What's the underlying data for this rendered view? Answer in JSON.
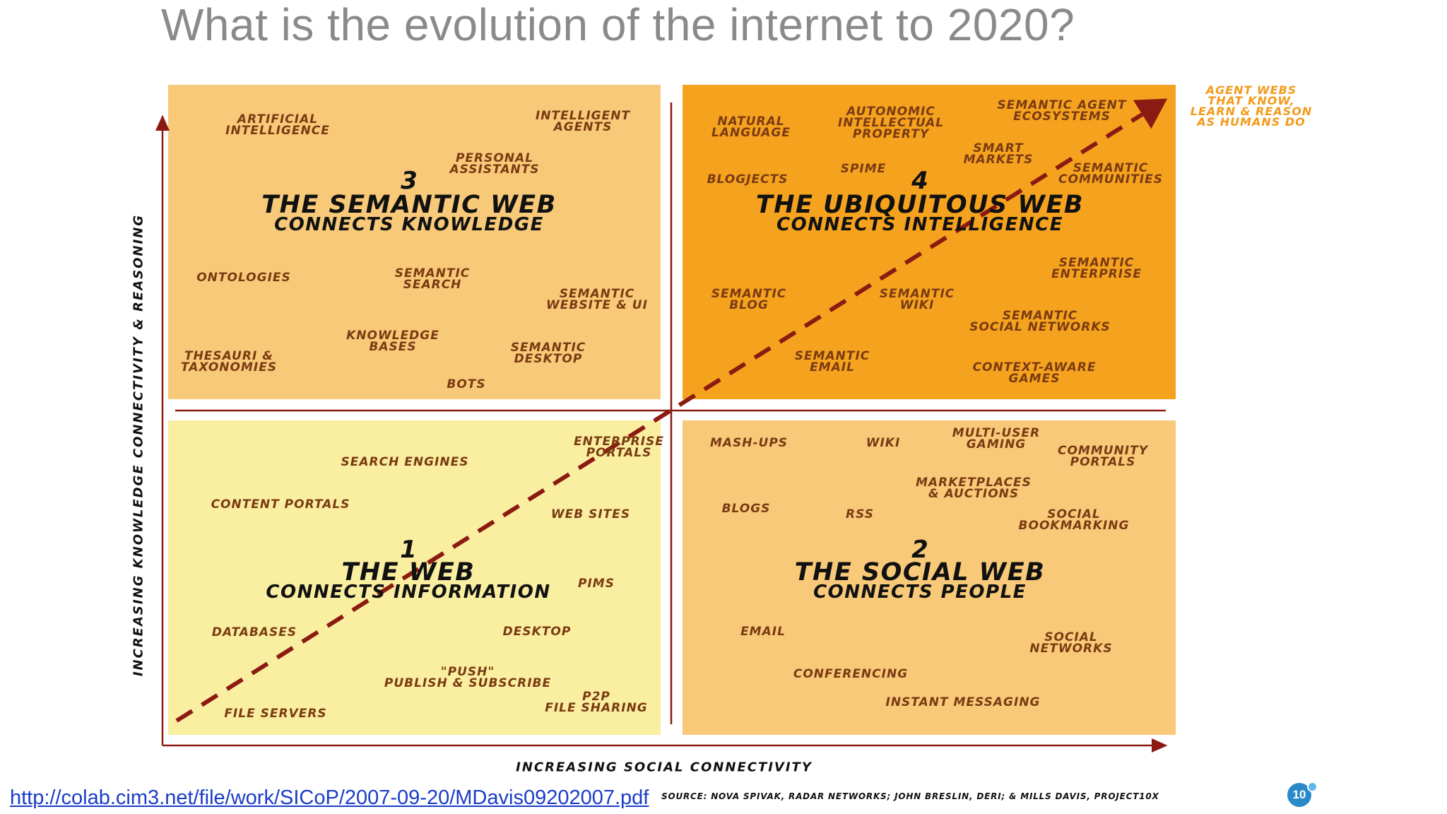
{
  "title": "What is the evolution of the internet to 2020?",
  "axes": {
    "x_label": "INCREASING SOCIAL CONNECTIVITY",
    "y_label": "INCREASING KNOWLEDGE CONNECTIVITY & REASONING"
  },
  "corner_note": "AGENT WEBS\nTHAT KNOW,\nLEARN & REASON\nAS HUMANS DO",
  "quadrants": {
    "q3": {
      "number": "3",
      "title": "THE SEMANTIC WEB",
      "subtitle": "CONNECTS KNOWLEDGE"
    },
    "q4": {
      "number": "4",
      "title": "THE UBIQUITOUS WEB",
      "subtitle": "CONNECTS INTELLIGENCE"
    },
    "q1": {
      "number": "1",
      "title": "THE WEB",
      "subtitle": "CONNECTS INFORMATION"
    },
    "q2": {
      "number": "2",
      "title": "THE SOCIAL WEB",
      "subtitle": "CONNECTS PEOPLE"
    }
  },
  "labels": {
    "artificial_intelligence": "ARTIFICIAL\nINTELLIGENCE",
    "intelligent_agents": "INTELLIGENT\nAGENTS",
    "personal_assistants": "PERSONAL\nASSISTANTS",
    "ontologies": "ONTOLOGIES",
    "semantic_search": "SEMANTIC\nSEARCH",
    "semantic_website_ui": "SEMANTIC\nWEBSITE & UI",
    "knowledge_bases": "KNOWLEDGE\nBASES",
    "thesauri_taxonomies": "THESAURI &\nTAXONOMIES",
    "semantic_desktop": "SEMANTIC\nDESKTOP",
    "bots": "BOTS",
    "natural_language": "NATURAL\nLANGUAGE",
    "autonomic_ip": "AUTONOMIC\nINTELLECTUAL\nPROPERTY",
    "semantic_agent_ecosystems": "SEMANTIC AGENT\nECOSYSTEMS",
    "smart_markets": "SMART\nMARKETS",
    "blogjects": "BLOGJECTS",
    "spime": "SPIME",
    "semantic_communities": "SEMANTIC\nCOMMUNITIES",
    "semantic_enterprise": "SEMANTIC\nENTERPRISE",
    "semantic_blog": "SEMANTIC\nBLOG",
    "semantic_wiki": "SEMANTIC\nWIKI",
    "semantic_social_networks": "SEMANTIC\nSOCIAL NETWORKS",
    "semantic_email": "SEMANTIC\nEMAIL",
    "context_aware_games": "CONTEXT-AWARE\nGAMES",
    "enterprise_portals": "ENTERPRISE\nPORTALS",
    "search_engines": "SEARCH ENGINES",
    "content_portals": "CONTENT PORTALS",
    "web_sites": "WEB SITES",
    "pims": "PIMS",
    "databases": "DATABASES",
    "desktop": "DESKTOP",
    "push_publish": "\"PUSH\"\nPUBLISH & SUBSCRIBE",
    "p2p_file_sharing": "P2P\nFILE SHARING",
    "file_servers": "FILE SERVERS",
    "mash_ups": "MASH-UPS",
    "wiki": "WIKI",
    "multi_user_gaming": "MULTI-USER\nGAMING",
    "community_portals": "COMMUNITY\nPORTALS",
    "marketplaces_auctions": "MARKETPLACES\n& AUCTIONS",
    "blogs": "BLOGS",
    "rss": "RSS",
    "social_bookmarking": "SOCIAL\nBOOKMARKING",
    "email": "EMAIL",
    "social_networks": "SOCIAL\nNETWORKS",
    "conferencing": "CONFERENCING",
    "instant_messaging": "INSTANT MESSAGING"
  },
  "source": "SOURCE: NOVA SPIVAK, RADAR NETWORKS; JOHN BRESLIN, DERI; & MILLS DAVIS, PROJECT10X",
  "link": "http://colab.cim3.net/file/work/SICoP/2007-09-20/MDavis09202007.pdf",
  "badge": "10",
  "colors": {
    "q1": "#faeea0",
    "q2": "#f7c978",
    "q3": "#f7c978",
    "q4": "#f5a21e",
    "trend_line": "#8b1a12",
    "label_text": "#7a3a12",
    "corner_note": "#f39a1a"
  }
}
